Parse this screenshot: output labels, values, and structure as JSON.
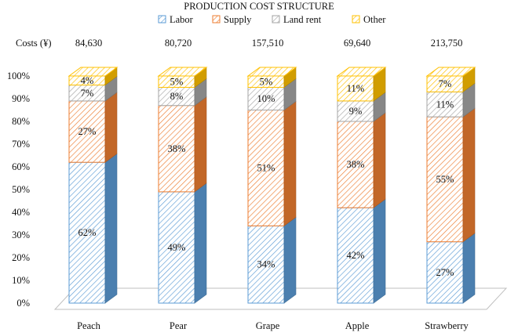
{
  "chart_data": {
    "type": "bar",
    "stacked": true,
    "three_d": true,
    "title": "PRODUCTION COST STRUCTURE",
    "xlabel": "",
    "ylabel": "",
    "categories": [
      "Peach",
      "Pear",
      "Grape",
      "Apple",
      "Strawberry"
    ],
    "costs_label": "Costs (¥)",
    "costs": [
      "84,630",
      "80,720",
      "157,510",
      "69,640",
      "213,750"
    ],
    "series": [
      {
        "name": "Labor",
        "values": [
          62,
          49,
          34,
          42,
          27
        ],
        "color": "#5b9bd5"
      },
      {
        "name": "Supply",
        "values": [
          27,
          38,
          51,
          38,
          55
        ],
        "color": "#ed7d31"
      },
      {
        "name": "Land rent",
        "values": [
          7,
          8,
          10,
          9,
          11
        ],
        "color": "#a5a5a5"
      },
      {
        "name": "Other",
        "values": [
          4,
          5,
          5,
          11,
          7
        ],
        "color": "#ffc000"
      }
    ],
    "ylim": [
      0,
      100
    ],
    "yticks": [
      "0%",
      "10%",
      "20%",
      "30%",
      "40%",
      "50%",
      "60%",
      "70%",
      "80%",
      "90%",
      "100%"
    ],
    "grid": false,
    "legend": "top"
  }
}
